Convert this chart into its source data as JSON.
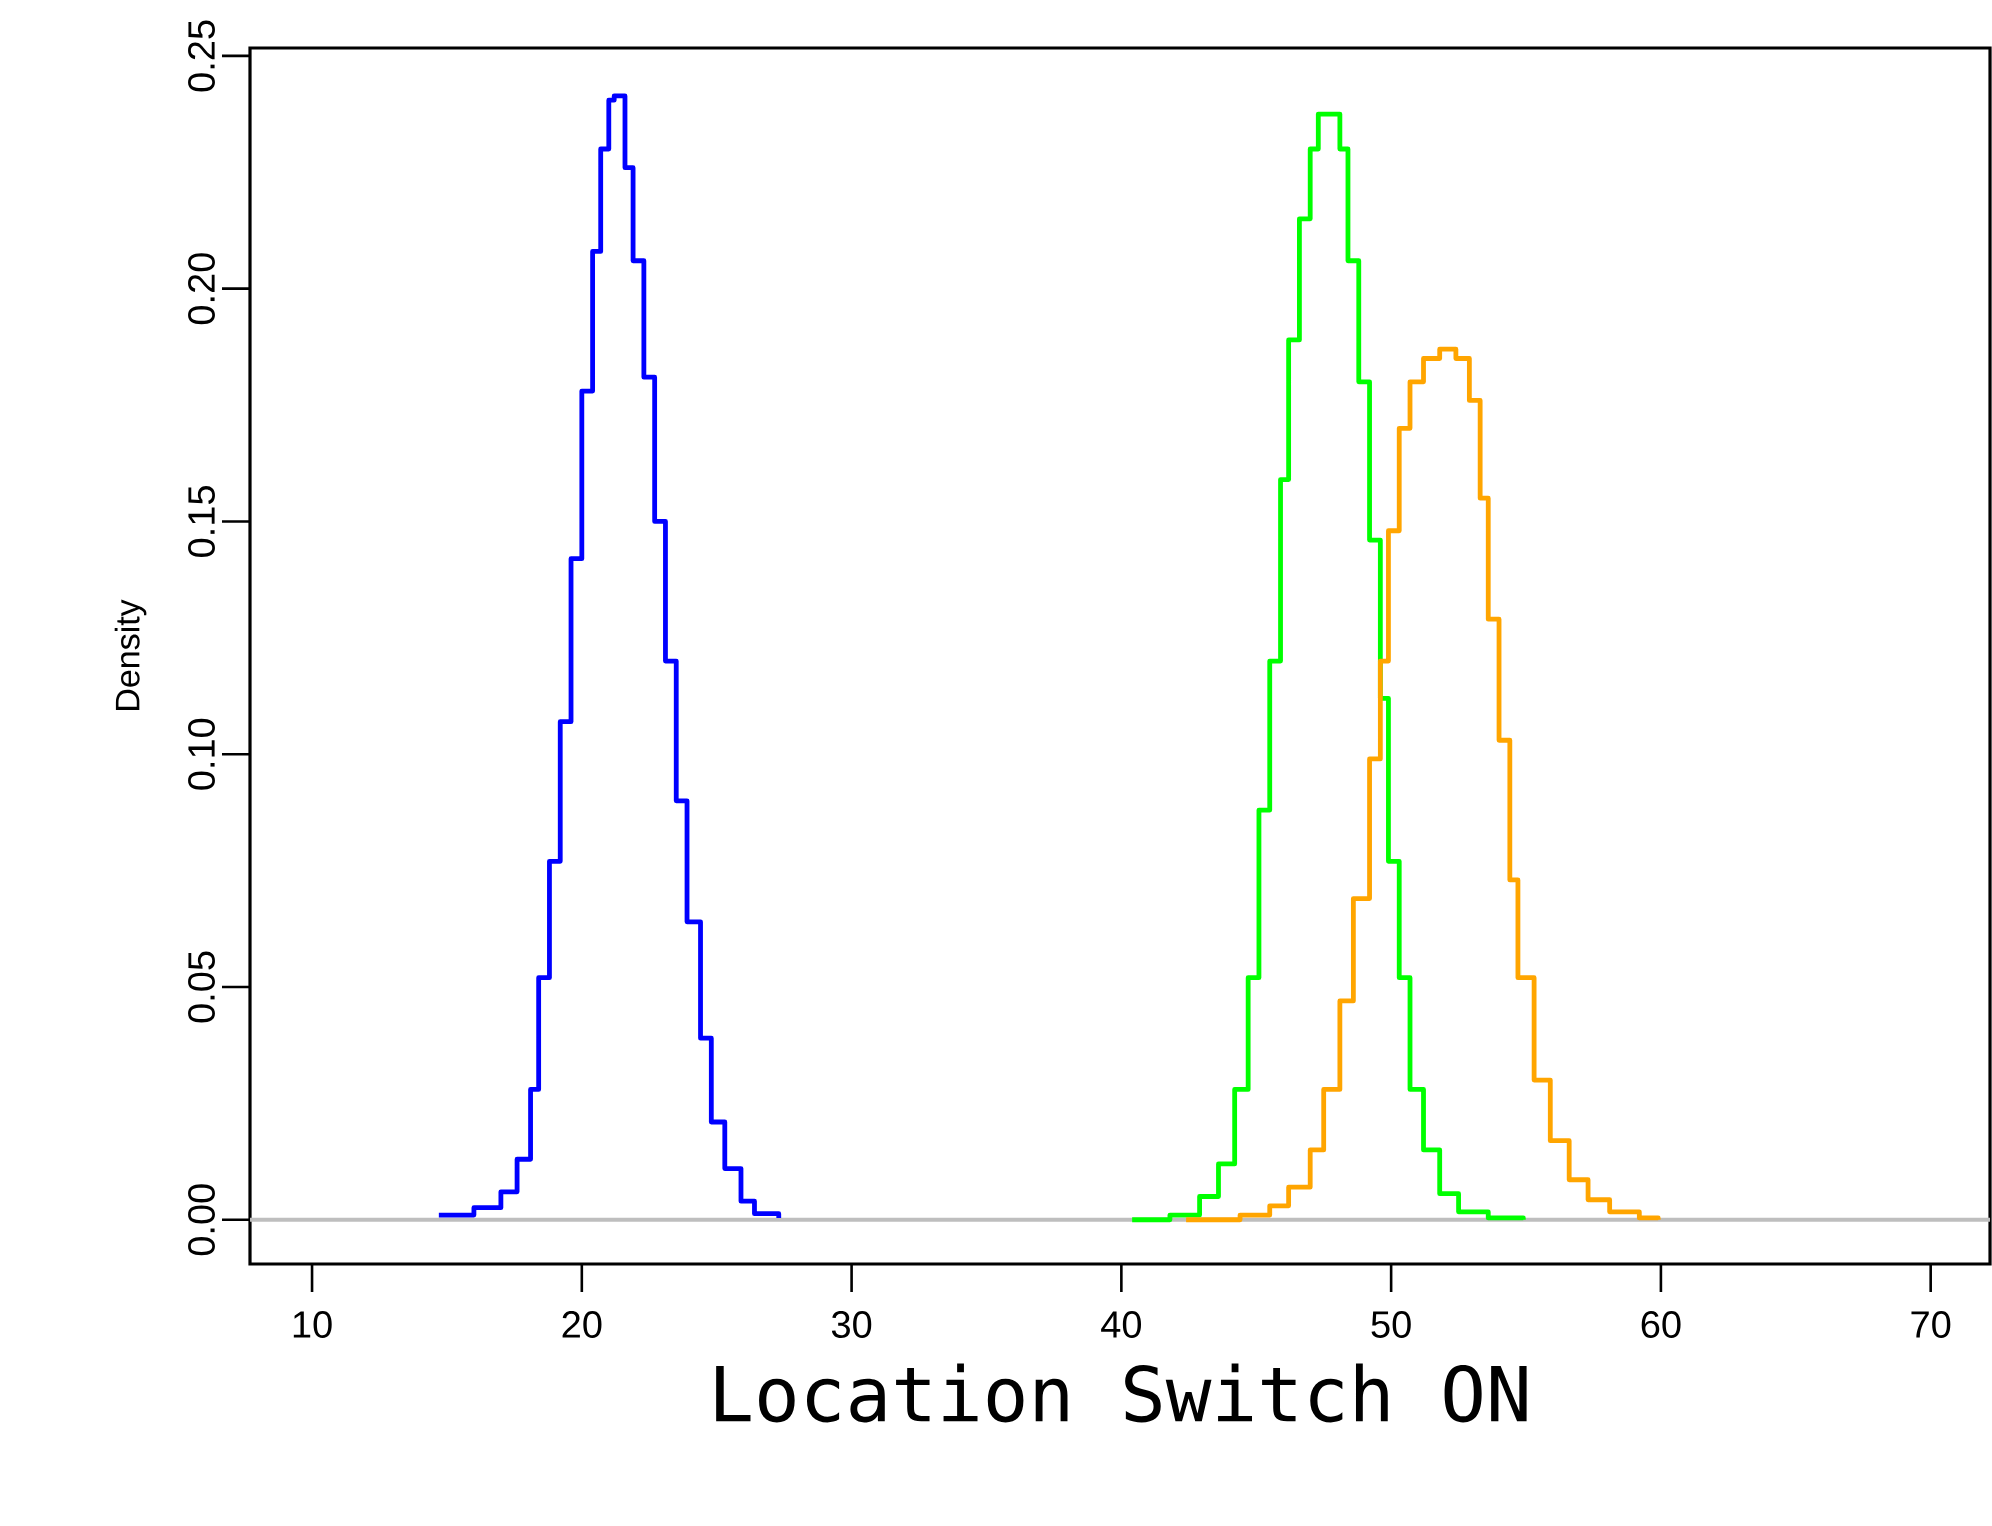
{
  "chart_data": {
    "type": "step",
    "xlabel": "Location Switch ON",
    "ylabel": "Density",
    "xlim": [
      7.7,
      72.2
    ],
    "ylim": [
      -0.0095,
      0.2517
    ],
    "xticks": [
      10,
      20,
      30,
      40,
      50,
      60,
      70
    ],
    "yticks": [
      {
        "value": 0,
        "label": "0.00"
      },
      {
        "value": 0.05,
        "label": "0.05"
      },
      {
        "value": 0.1,
        "label": "0.10"
      },
      {
        "value": 0.15,
        "label": "0.15"
      },
      {
        "value": 0.2,
        "label": "0.20"
      },
      {
        "value": 0.25,
        "label": "0.25"
      }
    ],
    "ref_lines": [
      {
        "axis": "y",
        "value": 0,
        "color": "#bebebe"
      }
    ],
    "series": [
      {
        "color": "#0000ff",
        "x": [
          14.7,
          16.0,
          17.0,
          17.6,
          18.1,
          18.4,
          18.8,
          19.2,
          19.6,
          20.0,
          20.4,
          20.7,
          21.0,
          21.2,
          21.6,
          21.9,
          22.3,
          22.7,
          23.1,
          23.5,
          23.9,
          24.4,
          24.8,
          25.3,
          25.9,
          26.4,
          27.3
        ],
        "values": [
          0.001,
          0.0026,
          0.006,
          0.013,
          0.028,
          0.052,
          0.077,
          0.107,
          0.142,
          0.178,
          0.208,
          0.23,
          0.2405,
          0.2414,
          0.226,
          0.206,
          0.181,
          0.15,
          0.12,
          0.09,
          0.064,
          0.039,
          0.021,
          0.011,
          0.004,
          0.0013,
          0.0004
        ]
      },
      {
        "color": "#00ff00",
        "x": [
          40.4,
          41.8,
          42.9,
          43.6,
          44.2,
          44.7,
          45.1,
          45.5,
          45.9,
          46.2,
          46.6,
          47.0,
          47.3,
          47.7,
          48.1,
          48.4,
          48.8,
          49.2,
          49.6,
          49.9,
          50.3,
          50.7,
          51.2,
          51.8,
          52.5,
          53.6,
          54.9
        ],
        "values": [
          0,
          0.001,
          0.005,
          0.012,
          0.028,
          0.052,
          0.088,
          0.12,
          0.159,
          0.189,
          0.215,
          0.23,
          0.2375,
          0.2375,
          0.23,
          0.206,
          0.18,
          0.146,
          0.112,
          0.077,
          0.052,
          0.028,
          0.015,
          0.0056,
          0.0017,
          0.0004,
          0
        ]
      },
      {
        "color": "#ffa500",
        "x": [
          42.4,
          44.4,
          45.5,
          46.2,
          47.0,
          47.5,
          48.1,
          48.6,
          49.2,
          49.6,
          49.9,
          50.3,
          50.7,
          51.2,
          51.8,
          52.4,
          52.9,
          53.3,
          53.6,
          54.0,
          54.4,
          54.7,
          55.3,
          55.9,
          56.6,
          57.3,
          58.1,
          59.2,
          59.9
        ],
        "values": [
          0,
          0.001,
          0.003,
          0.007,
          0.015,
          0.028,
          0.047,
          0.069,
          0.099,
          0.12,
          0.148,
          0.17,
          0.18,
          0.185,
          0.187,
          0.185,
          0.176,
          0.155,
          0.129,
          0.103,
          0.073,
          0.052,
          0.03,
          0.017,
          0.0086,
          0.0043,
          0.0017,
          0.0004,
          0
        ]
      }
    ]
  }
}
